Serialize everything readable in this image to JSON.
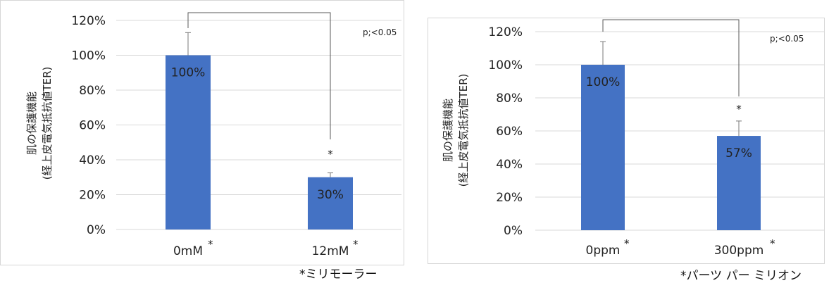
{
  "colors": {
    "bar": "#4472C4",
    "grid": "#d9d9d9",
    "error_bar": "#7a7a7a",
    "bracket": "#595959"
  },
  "chart_data": [
    {
      "type": "bar",
      "categories": [
        "0mM",
        "12mM"
      ],
      "category_marks": [
        "*",
        "*"
      ],
      "values": [
        100,
        30
      ],
      "data_labels": [
        "100%",
        "30%"
      ],
      "error_plus": [
        13,
        2.5
      ],
      "significance_star": "*",
      "annotation": "p;<0.05",
      "ylabel_lines": [
        "肌の保護機能",
        "(経上皮電気抵抗値TER)"
      ],
      "yticks": [
        "0%",
        "20%",
        "40%",
        "60%",
        "80%",
        "100%",
        "120%"
      ],
      "ylim": [
        0,
        120
      ],
      "grid": true,
      "footnote": "*ミリモーラー"
    },
    {
      "type": "bar",
      "categories": [
        "0ppm",
        "300ppm"
      ],
      "category_marks": [
        "*",
        "*"
      ],
      "values": [
        100,
        57
      ],
      "data_labels": [
        "100%",
        "57%"
      ],
      "error_plus": [
        14,
        9
      ],
      "significance_star": "*",
      "annotation": "p;<0.05",
      "ylabel_lines": [
        "肌の保護機能",
        "(経上皮電気抵抗値TER)"
      ],
      "yticks": [
        "0%",
        "20%",
        "40%",
        "60%",
        "80%",
        "100%",
        "120%"
      ],
      "ylim": [
        0,
        120
      ],
      "grid": true,
      "footnote": "*パーツ パー ミリオン"
    }
  ]
}
